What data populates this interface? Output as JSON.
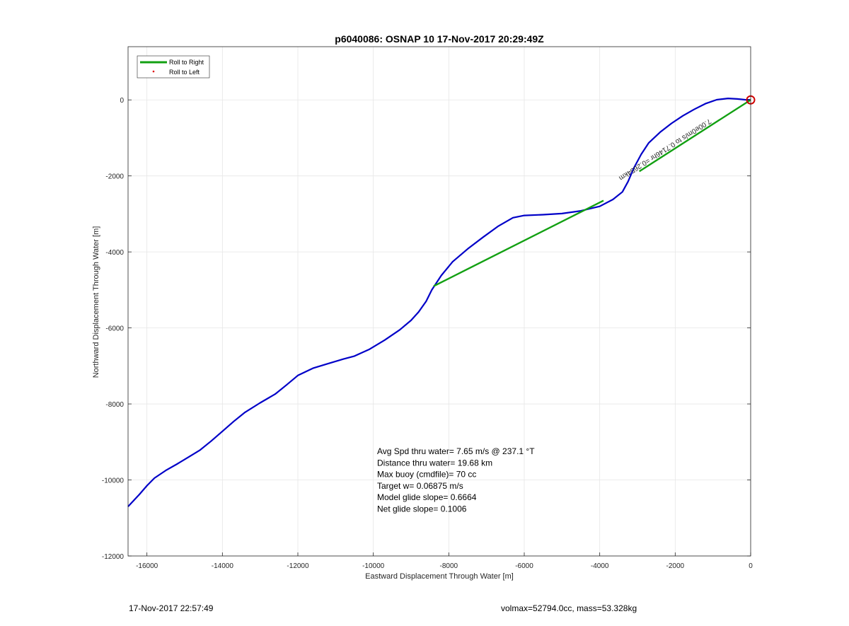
{
  "chart_data": {
    "type": "line",
    "title": "p6040086: OSNAP 10 17-Nov-2017 20:29:49Z",
    "xlabel": "Eastward Displacement Through Water [m]",
    "ylabel": "Northward Displacement Through Water [m]",
    "xlim": [
      -16500,
      0
    ],
    "ylim": [
      -12000,
      1400
    ],
    "xticks": [
      -16000,
      -14000,
      -12000,
      -10000,
      -8000,
      -6000,
      -4000,
      -2000,
      0
    ],
    "yticks": [
      -12000,
      -10000,
      -8000,
      -6000,
      -4000,
      -2000,
      0
    ],
    "grid": true,
    "legend_position": "top-left",
    "legend": [
      "Roll to Right",
      "Roll to Left"
    ],
    "series": [
      {
        "name": "",
        "color": "#0000c8",
        "points": [
          [
            0,
            0
          ],
          [
            -150,
            5
          ],
          [
            -350,
            25
          ],
          [
            -600,
            40
          ],
          [
            -900,
            5
          ],
          [
            -1200,
            -100
          ],
          [
            -1500,
            -250
          ],
          [
            -1800,
            -420
          ],
          [
            -2100,
            -620
          ],
          [
            -2400,
            -850
          ],
          [
            -2700,
            -1130
          ],
          [
            -2900,
            -1430
          ],
          [
            -3100,
            -1800
          ],
          [
            -3250,
            -2150
          ],
          [
            -3400,
            -2420
          ],
          [
            -3650,
            -2620
          ],
          [
            -4000,
            -2800
          ],
          [
            -4500,
            -2920
          ],
          [
            -5000,
            -2990
          ],
          [
            -5500,
            -3020
          ],
          [
            -6000,
            -3040
          ],
          [
            -6300,
            -3100
          ],
          [
            -6700,
            -3330
          ],
          [
            -7100,
            -3620
          ],
          [
            -7500,
            -3920
          ],
          [
            -7900,
            -4260
          ],
          [
            -8200,
            -4620
          ],
          [
            -8450,
            -5000
          ],
          [
            -8600,
            -5300
          ],
          [
            -8800,
            -5580
          ],
          [
            -9000,
            -5800
          ],
          [
            -9300,
            -6050
          ],
          [
            -9700,
            -6320
          ],
          [
            -10100,
            -6560
          ],
          [
            -10500,
            -6740
          ],
          [
            -10800,
            -6820
          ],
          [
            -11200,
            -6940
          ],
          [
            -11600,
            -7060
          ],
          [
            -12000,
            -7250
          ],
          [
            -12300,
            -7500
          ],
          [
            -12600,
            -7740
          ],
          [
            -13000,
            -7970
          ],
          [
            -13400,
            -8220
          ],
          [
            -13700,
            -8460
          ],
          [
            -14000,
            -8720
          ],
          [
            -14300,
            -8980
          ],
          [
            -14600,
            -9220
          ],
          [
            -14900,
            -9400
          ],
          [
            -15200,
            -9580
          ],
          [
            -15500,
            -9750
          ],
          [
            -15800,
            -9950
          ],
          [
            -16000,
            -10150
          ],
          [
            -16200,
            -10380
          ],
          [
            -16500,
            -10700
          ]
        ]
      },
      {
        "name": "Roll to Right",
        "color": "#12a012",
        "segments": [
          [
            [
              -8400,
              -4900
            ],
            [
              -3900,
              -2650
            ]
          ],
          [
            [
              -2950,
              -1880
            ],
            [
              0,
              0
            ]
          ]
        ]
      }
    ],
    "marker": {
      "x": 0,
      "y": 0,
      "color": "#d00000"
    },
    "rotated_annotation": "7.00e0m/s to 0.7146hr =0.2654km",
    "stats": [
      "Avg Spd thru water=  7.65 m/s @ 237.1 °T",
      "Distance thru water= 19.68 km",
      "Max buoy (cmdfile)= 70 cc",
      "Target w= 0.06875 m/s",
      "Model glide slope= 0.6664",
      "Net glide slope= 0.1006"
    ]
  },
  "footer": {
    "left": "17-Nov-2017 22:57:49",
    "right": "volmax=52794.0cc, mass=53.328kg"
  }
}
